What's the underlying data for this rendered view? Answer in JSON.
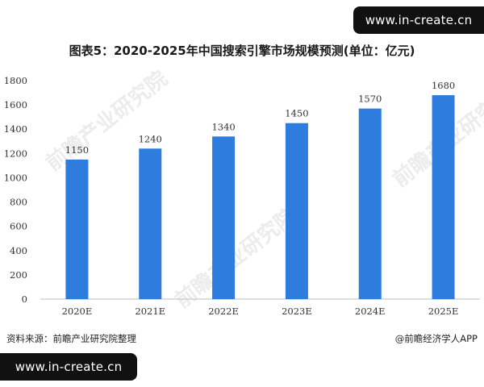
{
  "title": "图表5：2020-2025年中国搜索引擎市场规模预测(单位：亿元)",
  "source": "资料来源：前瞻产业研究院整理",
  "brand": "@前瞻经济学人APP",
  "watermark_url": "www.in-create.cn",
  "background_logo_text": "前瞻产业研究院",
  "colors": {
    "bar": "#2E7CDD",
    "axis": "#bfbfbf",
    "text": "#333333"
  },
  "chart_data": {
    "type": "bar",
    "title": "图表5：2020-2025年中国搜索引擎市场规模预测(单位：亿元)",
    "categories": [
      "2020E",
      "2021E",
      "2022E",
      "2023E",
      "2024E",
      "2025E"
    ],
    "values": [
      1150,
      1240,
      1340,
      1450,
      1570,
      1680
    ],
    "yticks": [
      0,
      200,
      400,
      600,
      800,
      1000,
      1200,
      1400,
      1600,
      1800
    ],
    "ylim": [
      0,
      1800
    ],
    "xlabel": "",
    "ylabel": "",
    "grid": false,
    "data_labels": true
  }
}
